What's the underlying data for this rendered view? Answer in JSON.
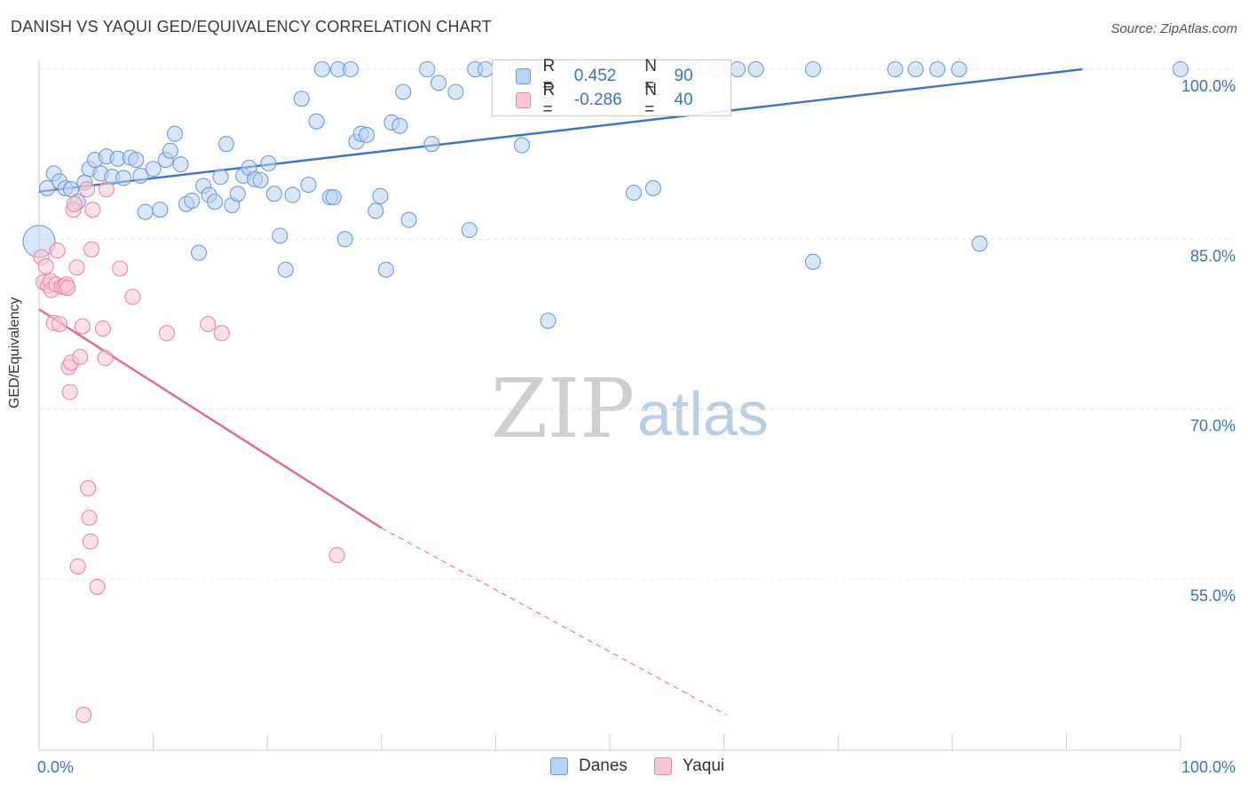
{
  "title": "DANISH VS YAQUI GED/EQUIVALENCY CORRELATION CHART",
  "source": "Source: ZipAtlas.com",
  "watermark": {
    "zip": "ZIP",
    "atlas": "atlas"
  },
  "legend": {
    "r_label": "R =",
    "n_label": "N =",
    "rows": [
      {
        "r": "0.452",
        "n": "90",
        "fill": "#b8d2f3",
        "stroke": "#6f9ddb"
      },
      {
        "r": "-0.286",
        "n": "40",
        "fill": "#f9c6d6",
        "stroke": "#e78aa8"
      }
    ]
  },
  "bottom_legend": [
    {
      "label": "Danes",
      "fill": "#b8d2f3",
      "stroke": "#6f9ddb"
    },
    {
      "label": "Yaqui",
      "fill": "#f9c6d6",
      "stroke": "#e78aa8"
    }
  ],
  "chart_data": {
    "type": "scatter",
    "title": "DANISH VS YAQUI GED/EQUIVALENCY CORRELATION CHART",
    "xlabel": "",
    "ylabel": "GED/Equivalency",
    "xlim": [
      0,
      100
    ],
    "ylim": [
      43,
      101
    ],
    "x_tick_labels": [
      {
        "value": 0,
        "label": "0.0%"
      },
      {
        "value": 100,
        "label": "100.0%"
      }
    ],
    "y_tick_labels": [
      {
        "value": 100,
        "label": "100.0%"
      },
      {
        "value": 85,
        "label": "85.0%"
      },
      {
        "value": 70,
        "label": "70.0%"
      },
      {
        "value": 55,
        "label": "55.0%"
      }
    ],
    "grid": "horizontal dashed",
    "colors": {
      "danes": "#3b74c7",
      "yaqui": "#e0688f",
      "tick_label": "#3b74c7"
    },
    "series": [
      {
        "name": "Danes",
        "fill": "#b8d2f3",
        "stroke": "#6f9ddb",
        "trend": {
          "x": [
            0,
            91.4
          ],
          "y": [
            89.2,
            100.0
          ],
          "dashed_from": null
        },
        "points": [
          [
            0.0,
            84.8
          ],
          [
            0.7,
            89.5
          ],
          [
            1.3,
            90.8
          ],
          [
            1.8,
            90.1
          ],
          [
            2.3,
            89.5
          ],
          [
            2.8,
            89.4
          ],
          [
            3.4,
            88.3
          ],
          [
            4.0,
            90.0
          ],
          [
            4.4,
            91.2
          ],
          [
            4.9,
            92.0
          ],
          [
            5.4,
            90.8
          ],
          [
            5.9,
            92.3
          ],
          [
            6.4,
            90.5
          ],
          [
            6.9,
            92.1
          ],
          [
            7.4,
            90.4
          ],
          [
            8.0,
            92.2
          ],
          [
            8.5,
            92.0
          ],
          [
            8.9,
            90.6
          ],
          [
            9.3,
            87.4
          ],
          [
            10.0,
            91.2
          ],
          [
            10.6,
            87.6
          ],
          [
            11.1,
            92.0
          ],
          [
            11.5,
            92.8
          ],
          [
            11.9,
            94.3
          ],
          [
            12.4,
            91.6
          ],
          [
            12.9,
            88.1
          ],
          [
            13.4,
            88.4
          ],
          [
            14.0,
            83.8
          ],
          [
            14.4,
            89.7
          ],
          [
            14.9,
            88.9
          ],
          [
            15.4,
            88.3
          ],
          [
            15.9,
            90.5
          ],
          [
            16.4,
            93.4
          ],
          [
            16.9,
            88.0
          ],
          [
            17.4,
            89.0
          ],
          [
            17.9,
            90.6
          ],
          [
            18.4,
            91.3
          ],
          [
            18.9,
            90.3
          ],
          [
            19.4,
            90.2
          ],
          [
            20.1,
            91.7
          ],
          [
            20.6,
            89.0
          ],
          [
            21.1,
            85.3
          ],
          [
            21.6,
            82.3
          ],
          [
            22.2,
            88.9
          ],
          [
            23.0,
            97.4
          ],
          [
            23.6,
            89.8
          ],
          [
            24.3,
            95.4
          ],
          [
            24.8,
            100.0
          ],
          [
            25.5,
            88.7
          ],
          [
            25.8,
            88.7
          ],
          [
            26.2,
            100.0
          ],
          [
            26.8,
            85.0
          ],
          [
            27.3,
            100.0
          ],
          [
            27.8,
            93.6
          ],
          [
            28.2,
            94.3
          ],
          [
            28.7,
            94.2
          ],
          [
            29.5,
            87.5
          ],
          [
            29.9,
            88.8
          ],
          [
            30.4,
            82.3
          ],
          [
            30.9,
            95.3
          ],
          [
            31.6,
            95.0
          ],
          [
            31.9,
            98.0
          ],
          [
            32.4,
            86.7
          ],
          [
            34.0,
            100.0
          ],
          [
            34.4,
            93.4
          ],
          [
            35.0,
            98.8
          ],
          [
            36.5,
            98.0
          ],
          [
            37.7,
            85.8
          ],
          [
            38.2,
            100.0
          ],
          [
            39.1,
            100.0
          ],
          [
            41.8,
            100.0
          ],
          [
            42.3,
            93.3
          ],
          [
            44.3,
            100.0
          ],
          [
            44.6,
            77.8
          ],
          [
            47.1,
            100.0
          ],
          [
            48.2,
            100.0
          ],
          [
            52.1,
            89.1
          ],
          [
            53.8,
            89.5
          ],
          [
            57.4,
            100.0
          ],
          [
            59.4,
            100.0
          ],
          [
            61.2,
            100.0
          ],
          [
            62.8,
            100.0
          ],
          [
            67.8,
            100.0
          ],
          [
            67.8,
            83.0
          ],
          [
            75.0,
            100.0
          ],
          [
            76.8,
            100.0
          ],
          [
            78.7,
            100.0
          ],
          [
            80.6,
            100.0
          ],
          [
            82.4,
            84.6
          ],
          [
            100.0,
            100.0
          ]
        ]
      },
      {
        "name": "Yaqui",
        "fill": "#f9c6d6",
        "stroke": "#e78aa8",
        "trend": {
          "x": [
            0,
            30.0,
            60.2
          ],
          "y": [
            78.8,
            59.5,
            43.0
          ],
          "dashed_from": 30.0
        },
        "points": [
          [
            0.2,
            83.4
          ],
          [
            0.4,
            81.2
          ],
          [
            0.6,
            82.6
          ],
          [
            0.8,
            80.9
          ],
          [
            1.0,
            81.3
          ],
          [
            1.1,
            80.5
          ],
          [
            1.3,
            77.6
          ],
          [
            1.5,
            81.0
          ],
          [
            1.6,
            84.0
          ],
          [
            1.8,
            77.5
          ],
          [
            2.0,
            80.8
          ],
          [
            2.2,
            80.8
          ],
          [
            2.4,
            81.0
          ],
          [
            2.5,
            80.7
          ],
          [
            2.6,
            73.7
          ],
          [
            2.7,
            71.5
          ],
          [
            2.8,
            74.1
          ],
          [
            3.0,
            87.6
          ],
          [
            3.1,
            88.1
          ],
          [
            3.3,
            82.5
          ],
          [
            3.4,
            56.1
          ],
          [
            3.6,
            74.6
          ],
          [
            3.8,
            77.3
          ],
          [
            3.9,
            43.0
          ],
          [
            4.2,
            89.4
          ],
          [
            4.3,
            63.0
          ],
          [
            4.4,
            60.4
          ],
          [
            4.5,
            58.3
          ],
          [
            4.6,
            84.1
          ],
          [
            4.7,
            87.6
          ],
          [
            5.1,
            54.3
          ],
          [
            5.6,
            77.1
          ],
          [
            5.8,
            74.5
          ],
          [
            5.9,
            89.4
          ],
          [
            7.1,
            82.4
          ],
          [
            8.2,
            79.9
          ],
          [
            11.2,
            76.7
          ],
          [
            14.8,
            77.5
          ],
          [
            16.0,
            76.7
          ],
          [
            26.1,
            57.1
          ]
        ]
      }
    ]
  }
}
